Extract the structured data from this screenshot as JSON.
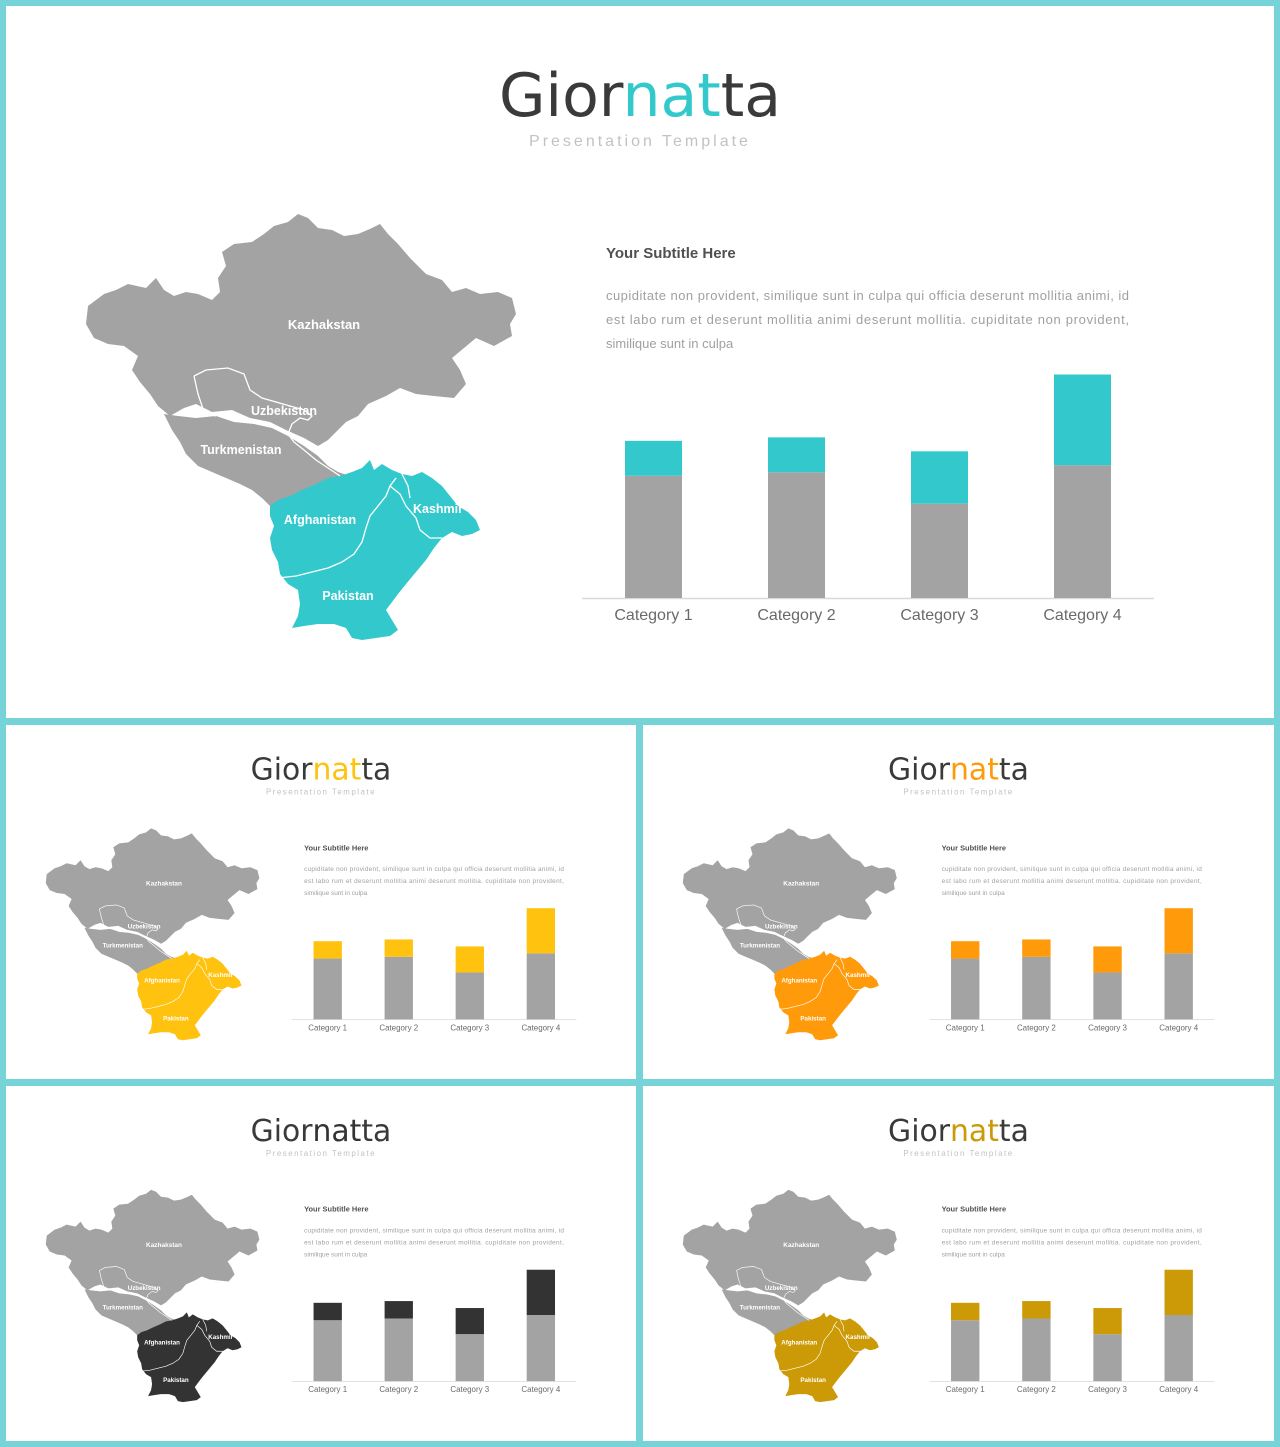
{
  "slides": [
    {
      "id": "main",
      "accent": "#33c9cc",
      "title_parts": {
        "pre": "Gior",
        "accent": "nat",
        "post": "ta"
      },
      "tagline": "Presentation Template",
      "subtitle": "Your Subtitle Here",
      "body_lines": [
        "cupiditate non provident, similique sunt in culpa qui officia deserunt mollitia animi, id",
        "est labo rum et deserunt mollitia animi deserunt mollitia. cupiditate non provident,",
        "similique sunt in culpa"
      ],
      "map_labels": {
        "kazakhstan": "Kazhakstan",
        "uzbekistan": "Uzbekistan",
        "turkmenistan": "Turkmenistan",
        "afghanistan": "Afghanistan",
        "kashmir": "Kashmir",
        "pakistan": "Pakistan"
      }
    },
    {
      "id": "s1",
      "accent": "#ffc20e",
      "title_parts": {
        "pre": "Gior",
        "accent": "nat",
        "post": "ta"
      },
      "tagline": "Presentation Template",
      "subtitle": "Your Subtitle Here",
      "body_lines": [
        "cupiditate non provident, similique sunt in culpa qui officia deserunt mollitia animi, id",
        "est labo rum et deserunt mollitia animi deserunt mollitia. cupiditate non provident,",
        "similique sunt in culpa"
      ],
      "map_labels": {
        "kazakhstan": "Kazhakstan",
        "uzbekistan": "Uzbekistan",
        "turkmenistan": "Turkmenistan",
        "afghanistan": "Afghanistan",
        "kashmir": "Kashmir",
        "pakistan": "Pakistan"
      }
    },
    {
      "id": "s2",
      "accent": "#ff9a0a",
      "title_parts": {
        "pre": "Gior",
        "accent": "nat",
        "post": "ta"
      },
      "tagline": "Presentation Template",
      "subtitle": "Your Subtitle Here",
      "body_lines": [
        "cupiditate non provident, similique sunt in culpa qui officia deserunt mollitia animi, id",
        "est labo rum et deserunt mollitia animi deserunt mollitia. cupiditate non provident,",
        "similique sunt in culpa"
      ],
      "map_labels": {
        "kazakhstan": "Kazhakstan",
        "uzbekistan": "Uzbekistan",
        "turkmenistan": "Turkmenistan",
        "afghanistan": "Afghanistan",
        "kashmir": "Kashmir",
        "pakistan": "Pakistan"
      }
    },
    {
      "id": "s3",
      "accent": "#333333",
      "title_parts": {
        "pre": "Gior",
        "accent": "nat",
        "post": "ta"
      },
      "tagline": "Presentation Template",
      "subtitle": "Your Subtitle Here",
      "body_lines": [
        "cupiditate non provident, similique sunt in culpa qui officia deserunt mollitia animi, id",
        "est labo rum et deserunt mollitia animi deserunt mollitia. cupiditate non provident,",
        "similique sunt in culpa"
      ],
      "map_labels": {
        "kazakhstan": "Kazhakstan",
        "uzbekistan": "Uzbekistan",
        "turkmenistan": "Turkmenistan",
        "afghanistan": "Afghanistan",
        "kashmir": "Kashmir",
        "pakistan": "Pakistan"
      }
    },
    {
      "id": "s4",
      "accent": "#cc9a06",
      "title_parts": {
        "pre": "Gior",
        "accent": "nat",
        "post": "ta"
      },
      "tagline": "Presentation Template",
      "subtitle": "Your Subtitle Here",
      "body_lines": [
        "cupiditate non provident, similique sunt in culpa qui officia deserunt mollitia animi, id",
        "est labo rum et deserunt mollitia animi deserunt mollitia. cupiditate non provident,",
        "similique sunt in culpa"
      ],
      "map_labels": {
        "kazakhstan": "Kazhakstan",
        "uzbekistan": "Uzbekistan",
        "turkmenistan": "Turkmenistan",
        "afghanistan": "Afghanistan",
        "kashmir": "Kashmir",
        "pakistan": "Pakistan"
      }
    }
  ],
  "base_color": "#a3a3a3",
  "chart_data": {
    "type": "bar",
    "stacked": true,
    "categories": [
      "Category 1",
      "Category 2",
      "Category 3",
      "Category 4"
    ],
    "series": [
      {
        "values": [
          3.5,
          3.6,
          2.7,
          3.8
        ]
      },
      {
        "values": [
          1.0,
          1.0,
          1.5,
          2.6
        ]
      }
    ],
    "ylim": [
      0,
      6.5
    ],
    "grid": false,
    "legend": "none"
  }
}
